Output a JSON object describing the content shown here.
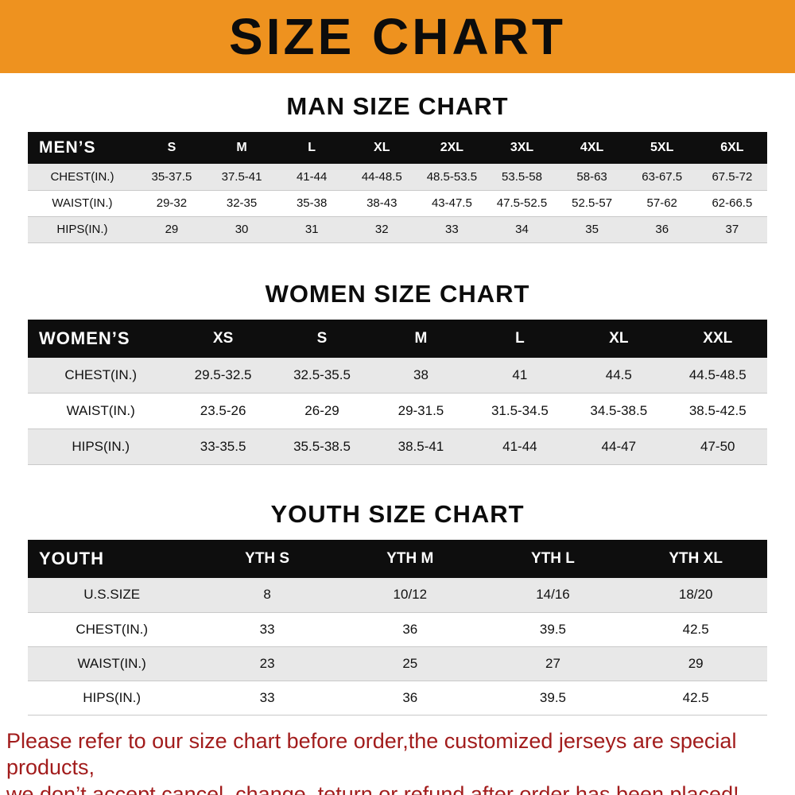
{
  "banner": {
    "title": "SIZE CHART",
    "bg_color": "#ee921f"
  },
  "sections": [
    {
      "id": "men",
      "title": "MAN SIZE CHART",
      "corner_label": "MEN’S",
      "columns": [
        "S",
        "M",
        "L",
        "XL",
        "2XL",
        "3XL",
        "4XL",
        "5XL",
        "6XL"
      ],
      "rows": [
        {
          "label": "CHEST(IN.)",
          "values": [
            "35-37.5",
            "37.5-41",
            "41-44",
            "44-48.5",
            "48.5-53.5",
            "53.5-58",
            "58-63",
            "63-67.5",
            "67.5-72"
          ]
        },
        {
          "label": "WAIST(IN.)",
          "values": [
            "29-32",
            "32-35",
            "35-38",
            "38-43",
            "43-47.5",
            "47.5-52.5",
            "52.5-57",
            "57-62",
            "62-66.5"
          ]
        },
        {
          "label": "HIPS(IN.)",
          "values": [
            "29",
            "30",
            "31",
            "32",
            "33",
            "34",
            "35",
            "36",
            "37"
          ]
        }
      ]
    },
    {
      "id": "women",
      "title": "WOMEN SIZE CHART",
      "corner_label": "WOMEN’S",
      "columns": [
        "XS",
        "S",
        "M",
        "L",
        "XL",
        "XXL"
      ],
      "rows": [
        {
          "label": "CHEST(IN.)",
          "values": [
            "29.5-32.5",
            "32.5-35.5",
            "38",
            "41",
            "44.5",
            "44.5-48.5"
          ]
        },
        {
          "label": "WAIST(IN.)",
          "values": [
            "23.5-26",
            "26-29",
            "29-31.5",
            "31.5-34.5",
            "34.5-38.5",
            "38.5-42.5"
          ]
        },
        {
          "label": "HIPS(IN.)",
          "values": [
            "33-35.5",
            "35.5-38.5",
            "38.5-41",
            "41-44",
            "44-47",
            "47-50"
          ]
        }
      ]
    },
    {
      "id": "youth",
      "title": "YOUTH SIZE CHART",
      "corner_label": "YOUTH",
      "columns": [
        "YTH S",
        "YTH M",
        "YTH L",
        "YTH XL"
      ],
      "rows": [
        {
          "label": "U.S.SIZE",
          "values": [
            "8",
            "10/12",
            "14/16",
            "18/20"
          ]
        },
        {
          "label": "CHEST(IN.)",
          "values": [
            "33",
            "36",
            "39.5",
            "42.5"
          ]
        },
        {
          "label": "WAIST(IN.)",
          "values": [
            "23",
            "25",
            "27",
            "29"
          ]
        },
        {
          "label": "HIPS(IN.)",
          "values": [
            "33",
            "36",
            "39.5",
            "42.5"
          ]
        }
      ]
    }
  ],
  "footer": {
    "text_color": "#a21c1c",
    "lines": [
      "Please refer to our size chart before order,the customized jerseys are special products,",
      "we don’t accept cancel, change, teturn or refund after order has been placed!"
    ]
  }
}
